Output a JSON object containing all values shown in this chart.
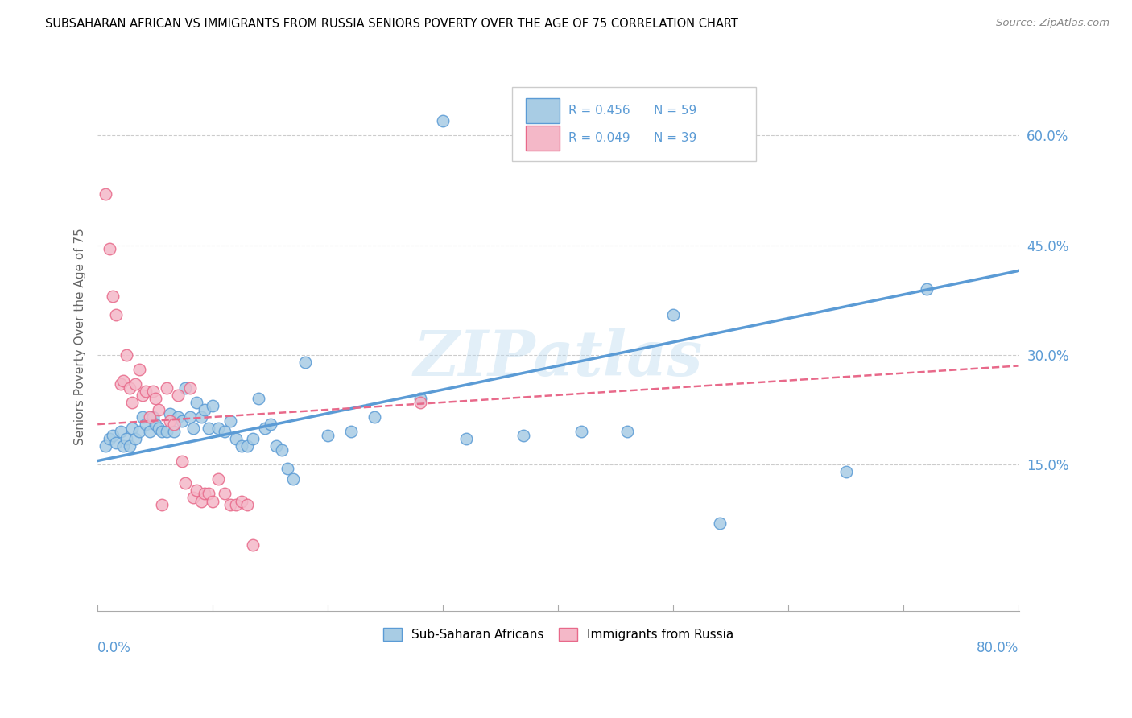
{
  "title": "SUBSAHARAN AFRICAN VS IMMIGRANTS FROM RUSSIA SENIORS POVERTY OVER THE AGE OF 75 CORRELATION CHART",
  "source": "Source: ZipAtlas.com",
  "ylabel": "Seniors Poverty Over the Age of 75",
  "ytick_labels": [
    "15.0%",
    "30.0%",
    "45.0%",
    "60.0%"
  ],
  "ytick_values": [
    0.15,
    0.3,
    0.45,
    0.6
  ],
  "xlim": [
    0.0,
    0.8
  ],
  "ylim": [
    -0.05,
    0.7
  ],
  "watermark": "ZIPatlas",
  "color_blue": "#a8cce4",
  "color_pink": "#f4b8c8",
  "edge_blue": "#5b9bd5",
  "edge_pink": "#e8698a",
  "line_blue": "#5b9bd5",
  "line_pink": "#e8698a",
  "blue_line_x0": 0.0,
  "blue_line_x1": 0.8,
  "blue_line_y0": 0.155,
  "blue_line_y1": 0.415,
  "pink_line_x0": 0.0,
  "pink_line_x1": 0.8,
  "pink_line_y0": 0.205,
  "pink_line_y1": 0.285,
  "blue_x": [
    0.3,
    0.007,
    0.01,
    0.013,
    0.016,
    0.02,
    0.022,
    0.025,
    0.028,
    0.03,
    0.033,
    0.036,
    0.039,
    0.042,
    0.045,
    0.048,
    0.05,
    0.053,
    0.056,
    0.06,
    0.063,
    0.066,
    0.07,
    0.073,
    0.076,
    0.08,
    0.083,
    0.086,
    0.09,
    0.093,
    0.096,
    0.1,
    0.105,
    0.11,
    0.115,
    0.12,
    0.125,
    0.13,
    0.135,
    0.14,
    0.145,
    0.15,
    0.155,
    0.16,
    0.165,
    0.17,
    0.18,
    0.2,
    0.22,
    0.24,
    0.28,
    0.32,
    0.37,
    0.42,
    0.46,
    0.5,
    0.54,
    0.65,
    0.72
  ],
  "blue_y": [
    0.62,
    0.175,
    0.185,
    0.19,
    0.18,
    0.195,
    0.175,
    0.185,
    0.175,
    0.2,
    0.185,
    0.195,
    0.215,
    0.205,
    0.195,
    0.215,
    0.205,
    0.2,
    0.195,
    0.195,
    0.22,
    0.195,
    0.215,
    0.21,
    0.255,
    0.215,
    0.2,
    0.235,
    0.215,
    0.225,
    0.2,
    0.23,
    0.2,
    0.195,
    0.21,
    0.185,
    0.175,
    0.175,
    0.185,
    0.24,
    0.2,
    0.205,
    0.175,
    0.17,
    0.145,
    0.13,
    0.29,
    0.19,
    0.195,
    0.215,
    0.24,
    0.185,
    0.19,
    0.195,
    0.195,
    0.355,
    0.07,
    0.14,
    0.39
  ],
  "pink_x": [
    0.007,
    0.01,
    0.013,
    0.016,
    0.02,
    0.022,
    0.025,
    0.028,
    0.03,
    0.033,
    0.036,
    0.039,
    0.042,
    0.045,
    0.048,
    0.05,
    0.053,
    0.056,
    0.06,
    0.063,
    0.066,
    0.07,
    0.073,
    0.076,
    0.08,
    0.083,
    0.086,
    0.09,
    0.093,
    0.096,
    0.1,
    0.105,
    0.11,
    0.115,
    0.12,
    0.125,
    0.13,
    0.135,
    0.28
  ],
  "pink_y": [
    0.52,
    0.445,
    0.38,
    0.355,
    0.26,
    0.265,
    0.3,
    0.255,
    0.235,
    0.26,
    0.28,
    0.245,
    0.25,
    0.215,
    0.25,
    0.24,
    0.225,
    0.095,
    0.255,
    0.21,
    0.205,
    0.245,
    0.155,
    0.125,
    0.255,
    0.105,
    0.115,
    0.1,
    0.11,
    0.11,
    0.1,
    0.13,
    0.11,
    0.095,
    0.095,
    0.1,
    0.095,
    0.04,
    0.235
  ]
}
